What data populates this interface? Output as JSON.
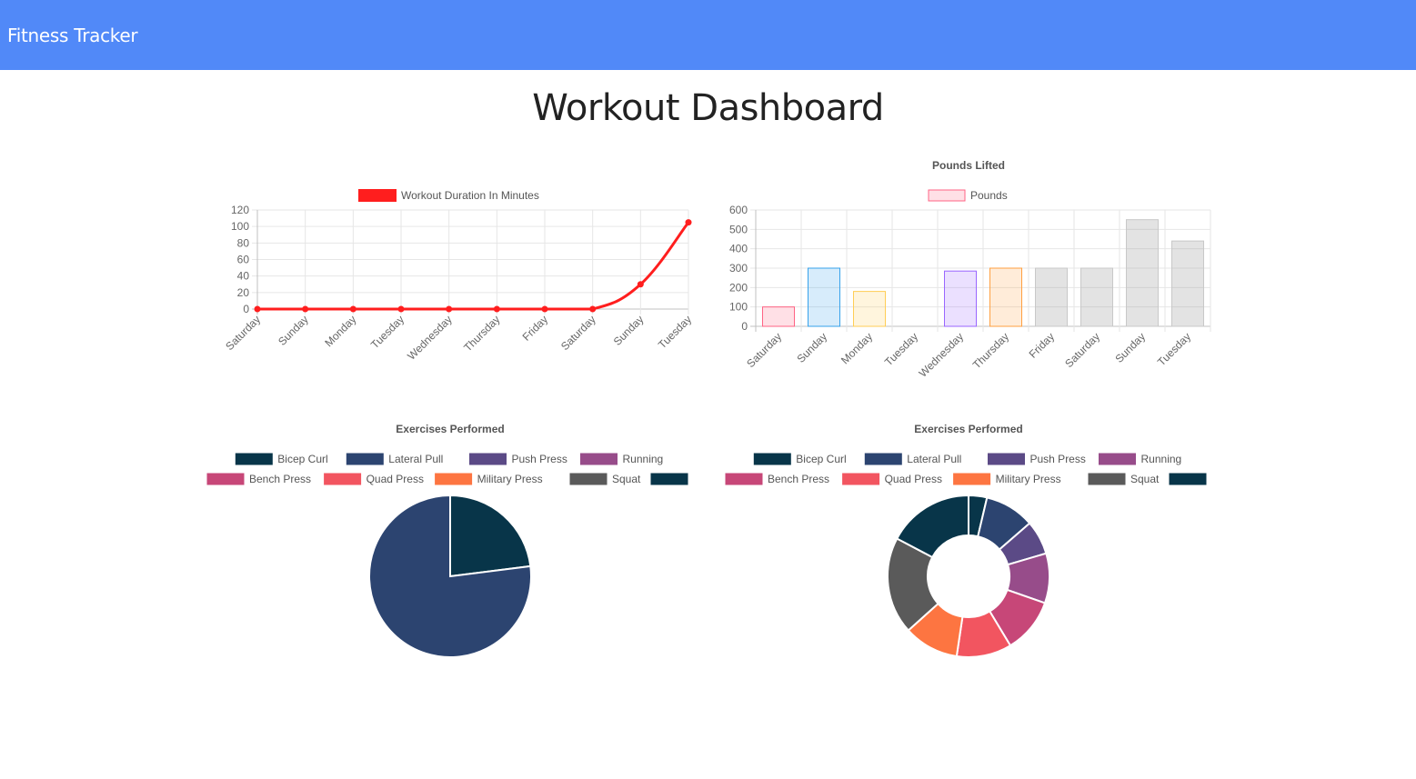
{
  "header": {
    "brand": "Fitness Tracker"
  },
  "page": {
    "title": "Workout Dashboard"
  },
  "chart_data": [
    {
      "type": "line",
      "title": "",
      "legend": [
        {
          "name": "Workout Duration In Minutes",
          "color": "#ff1e1e"
        }
      ],
      "categories": [
        "Saturday",
        "Sunday",
        "Monday",
        "Tuesday",
        "Wednesday",
        "Thursday",
        "Friday",
        "Saturday",
        "Sunday",
        "Tuesday"
      ],
      "series": [
        {
          "name": "Workout Duration In Minutes",
          "values": [
            0,
            0,
            0,
            0,
            0,
            0,
            0,
            0,
            30,
            105
          ],
          "color": "#ff1e1e"
        }
      ],
      "ylim": [
        0,
        120
      ],
      "yticks": [
        0,
        20,
        40,
        60,
        80,
        100,
        120
      ],
      "grid": true,
      "legend_position": "top"
    },
    {
      "type": "bar",
      "title": "Pounds Lifted",
      "legend": [
        {
          "name": "Pounds",
          "color": "rgba(255,99,132,0.2)",
          "border": "#ff6384"
        }
      ],
      "categories": [
        "Saturday",
        "Sunday",
        "Monday",
        "Tuesday",
        "Wednesday",
        "Thursday",
        "Friday",
        "Saturday",
        "Sunday",
        "Tuesday"
      ],
      "series": [
        {
          "name": "Pounds",
          "values": [
            100,
            300,
            180,
            0,
            285,
            300,
            300,
            300,
            550,
            440
          ]
        }
      ],
      "bar_fill": [
        "rgba(255,99,132,0.2)",
        "rgba(54,162,235,0.2)",
        "rgba(255,206,86,0.2)",
        "rgba(75,192,192,0.2)",
        "rgba(153,102,255,0.2)",
        "rgba(255,159,64,0.2)",
        "rgba(150,150,150,0.27)",
        "rgba(150,150,150,0.27)",
        "rgba(150,150,150,0.27)",
        "rgba(150,150,150,0.27)"
      ],
      "bar_border": [
        "#ff6384",
        "#36a2eb",
        "#ffce56",
        "#4bc0c0",
        "#9966ff",
        "#ff9f40",
        "#c8c8c8",
        "#c8c8c8",
        "#c8c8c8",
        "#c8c8c8"
      ],
      "ylim": [
        0,
        600
      ],
      "yticks": [
        0,
        100,
        200,
        300,
        400,
        500,
        600
      ],
      "grid": true,
      "legend_position": "top"
    },
    {
      "type": "pie",
      "title": "Exercises Performed",
      "labels": [
        "Bicep Curl",
        "Lateral Pull",
        "Push Press",
        "Running",
        "Bench Press",
        "Quad Press",
        "Military Press",
        "Squat",
        ""
      ],
      "colors": [
        "#083549",
        "#2c4470",
        "#5b4a86",
        "#974c8a",
        "#c74778",
        "#f25560",
        "#fd7541",
        "#5a5a5a",
        "#083549"
      ],
      "values": [
        23,
        77,
        0,
        0,
        0,
        0,
        0,
        0,
        0
      ],
      "legend_position": "top"
    },
    {
      "type": "doughnut",
      "title": "Exercises Performed",
      "labels": [
        "Bicep Curl",
        "Lateral Pull",
        "Push Press",
        "Running",
        "Bench Press",
        "Quad Press",
        "Military Press",
        "Squat",
        ""
      ],
      "colors": [
        "#083549",
        "#2c4470",
        "#5b4a86",
        "#974c8a",
        "#c74778",
        "#f25560",
        "#fd7541",
        "#5a5a5a",
        "#083549",
        "#2c4470"
      ],
      "values": [
        3.5,
        9.5,
        6.5,
        9.5,
        10.5,
        10.5,
        10.5,
        18.5,
        16.5
      ],
      "legend_position": "top"
    }
  ]
}
